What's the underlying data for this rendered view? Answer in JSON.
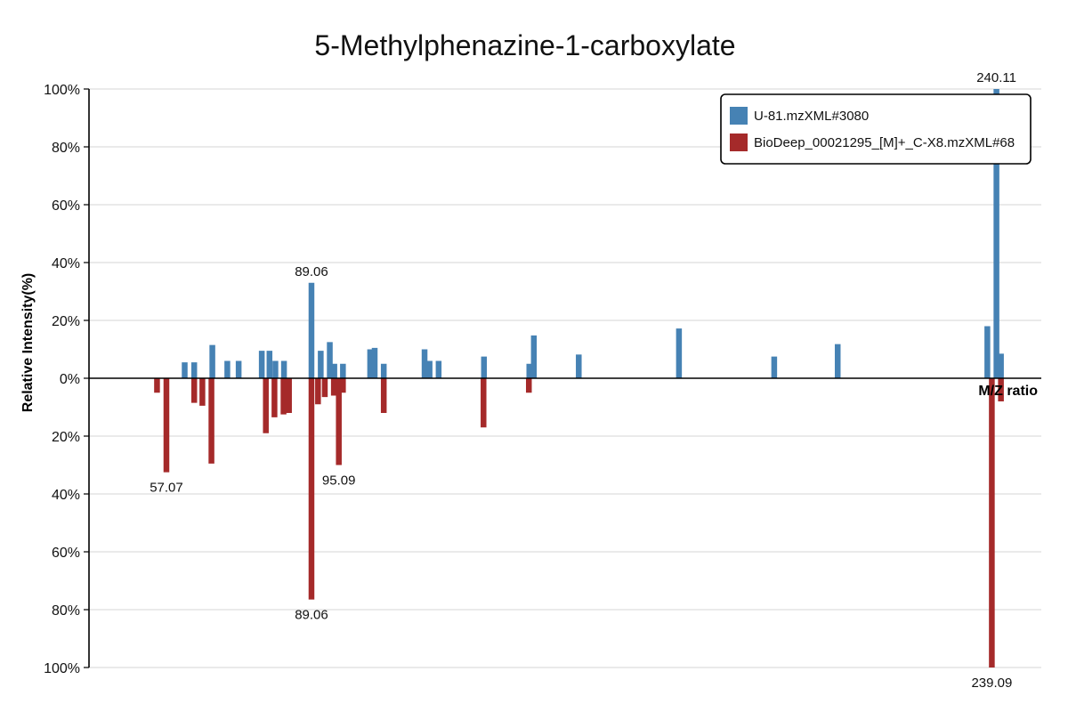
{
  "chart_data": {
    "type": "bar",
    "title": "5-Methylphenazine-1-carboxylate",
    "xlabel": "M/Z ratio",
    "ylabel": "Relative Intensity(%)",
    "ylim": [
      -100,
      100
    ],
    "xlim": [
      40,
      250
    ],
    "y_tick_labels": [
      "100%",
      "80%",
      "60%",
      "40%",
      "20%",
      "0%",
      "20%",
      "40%",
      "60%",
      "80%",
      "100%"
    ],
    "grid": true,
    "legend_position": "top-right",
    "series": [
      {
        "name": "U-81.mzXML#3080",
        "color": "#4682b4",
        "direction": "up",
        "x": [
          61.1,
          63.2,
          67.2,
          70.5,
          73.0,
          78.1,
          79.8,
          81.1,
          83.0,
          89.06,
          91.1,
          93.1,
          94.1,
          96.0,
          102.0,
          103.0,
          105.0,
          114.0,
          115.1,
          117.1,
          127.1,
          137.1,
          138.1,
          148.0,
          170.1,
          191.1,
          205.1,
          238.1,
          240.11,
          241.1
        ],
        "values": [
          5.5,
          5.5,
          11.5,
          6.0,
          6.0,
          9.5,
          9.5,
          6.0,
          6.0,
          33.0,
          9.5,
          12.5,
          5.0,
          5.0,
          10.0,
          10.5,
          5.0,
          10.0,
          6.0,
          6.0,
          7.5,
          5.0,
          14.8,
          8.2,
          17.2,
          7.5,
          11.8,
          18.0,
          100,
          8.5
        ]
      },
      {
        "name": "BioDeep_00021295_[M]+_C-X8.mzXML#68",
        "color": "#a52a2a",
        "direction": "down",
        "x": [
          55.0,
          57.07,
          63.2,
          65.0,
          67.0,
          79.0,
          80.9,
          82.9,
          84.1,
          89.06,
          90.5,
          92.0,
          94.0,
          95.09,
          96.0,
          105.0,
          127.0,
          137.0,
          239.09,
          241.1
        ],
        "values": [
          5.0,
          32.5,
          8.5,
          9.5,
          29.5,
          19.0,
          13.5,
          12.5,
          12.0,
          76.5,
          9.0,
          6.5,
          6.0,
          30.0,
          5.0,
          12.0,
          17.0,
          5.0,
          100,
          8.0
        ]
      }
    ],
    "peak_labels": [
      {
        "text": "240.11",
        "x": 240.11,
        "y": 100
      },
      {
        "text": "89.06",
        "x": 89.06,
        "y": 33.0
      },
      {
        "text": "57.07",
        "x": 57.07,
        "y": -32.5
      },
      {
        "text": "95.09",
        "x": 95.09,
        "y": -30.0
      },
      {
        "text": "89.06",
        "x": 89.06,
        "y": -76.5
      },
      {
        "text": "239.09",
        "x": 239.09,
        "y": -100
      }
    ]
  }
}
